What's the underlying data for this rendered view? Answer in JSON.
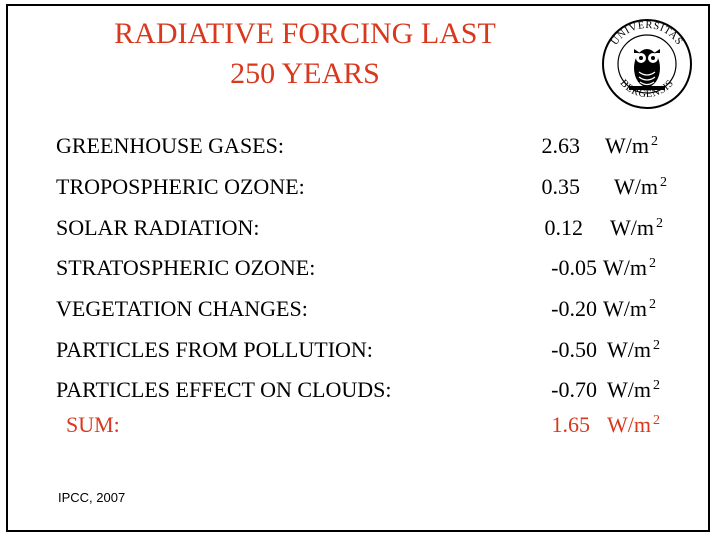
{
  "title": {
    "line1": "RADIATIVE FORCING LAST",
    "line2": "250 YEARS"
  },
  "seal": {
    "text_top": "UNIVERSITAS",
    "text_bottom": "BERGENSIS",
    "color": "#000000"
  },
  "colors": {
    "accent": "#d9381e"
  },
  "rows": [
    {
      "label": "GREENHOUSE GASES:",
      "value": "2.63",
      "unit": "W/m",
      "exp": "2"
    },
    {
      "label": "TROPOSPHERIC OZONE:",
      "value": "0.35",
      "unit": "W/m",
      "exp": "2"
    },
    {
      "label": "SOLAR RADIATION:",
      "value": "0.12",
      "unit": "W/m",
      "exp": "2"
    },
    {
      "label": "STRATOSPHERIC OZONE:",
      "value": "-0.05",
      "unit": "W/m",
      "exp": "2"
    },
    {
      "label": "VEGETATION CHANGES:",
      "value": "-0.20",
      "unit": "W/m",
      "exp": "2"
    },
    {
      "label": "PARTICLES FROM POLLUTION:",
      "value": "-0.50",
      "unit": "W/m",
      "exp": "2"
    },
    {
      "label": "PARTICLES EFFECT ON CLOUDS:",
      "value": "-0.70",
      "unit": "W/m",
      "exp": "2"
    }
  ],
  "sum": {
    "label": "SUM:",
    "value": "1.65",
    "unit": "W/m",
    "exp": "2"
  },
  "source": "IPCC, 2007"
}
